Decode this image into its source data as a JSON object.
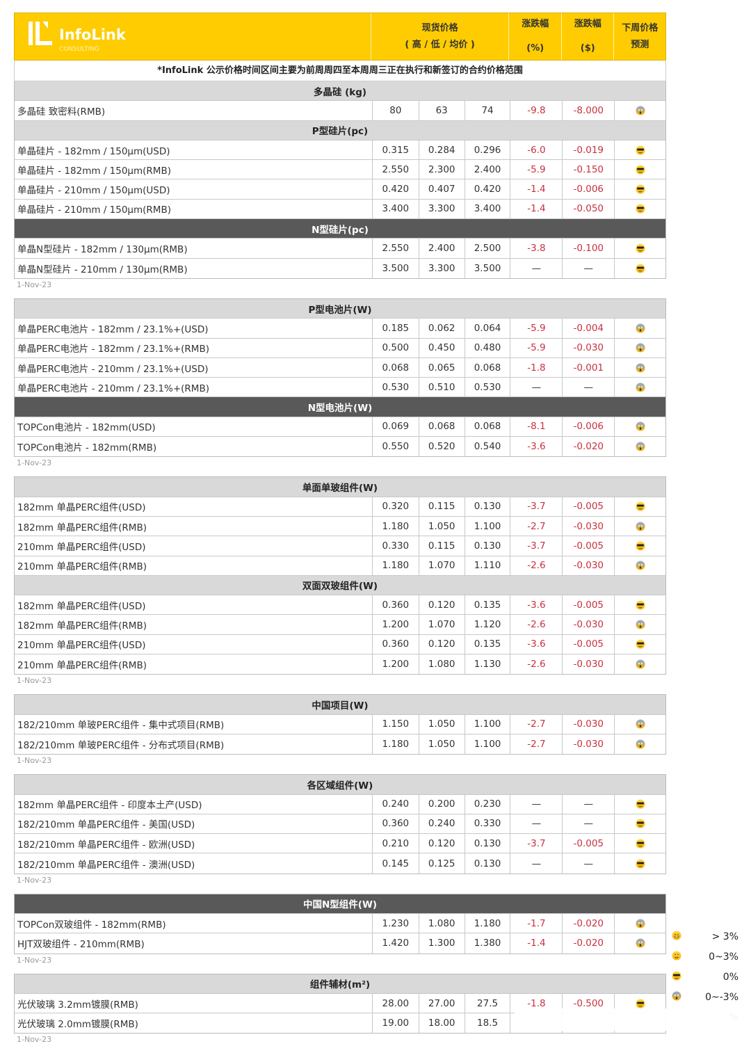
{
  "brand": {
    "name": "InfoLink",
    "sub": "CONSULTING"
  },
  "header": {
    "price_line1": "现货价格",
    "price_line2": "( 高 / 低 / 均价 )",
    "pct_line1": "涨跌幅",
    "pct_line2": "(%)",
    "usd_line1": "涨跌幅",
    "usd_line2": "($)",
    "forecast_line1": "下周价格",
    "forecast_line2": "预测"
  },
  "notice": "*InfoLink 公示价格时间区间主要为前周周四至本周周三正在执行和新签订的合约价格范围",
  "colors": {
    "yellow": "#fecc00",
    "section_gray": "#d9d9d9",
    "section_dark": "#595959",
    "negative_red": "#c8303e"
  },
  "blocks": [
    {
      "date": "1-Nov-23",
      "sections": [
        {
          "title": "多晶硅 (kg)",
          "dark": false,
          "rows": [
            [
              "多晶硅 致密料(RMB)",
              "80",
              "63",
              "74",
              "-9.8",
              "-8.000",
              "scream-face"
            ]
          ]
        },
        {
          "title": "P型硅片(pc)",
          "dark": false,
          "rows": [
            [
              "单晶硅片 - 182mm / 150μm(USD)",
              "0.315",
              "0.284",
              "0.296",
              "-6.0",
              "-0.019",
              "sunglasses-face"
            ],
            [
              "单晶硅片 - 182mm / 150μm(RMB)",
              "2.550",
              "2.300",
              "2.400",
              "-5.9",
              "-0.150",
              "sunglasses-face"
            ],
            [
              "单晶硅片 - 210mm / 150μm(USD)",
              "0.420",
              "0.407",
              "0.420",
              "-1.4",
              "-0.006",
              "sunglasses-face"
            ],
            [
              "单晶硅片 - 210mm / 150μm(RMB)",
              "3.400",
              "3.300",
              "3.400",
              "-1.4",
              "-0.050",
              "sunglasses-face"
            ]
          ]
        },
        {
          "title": "N型硅片(pc)",
          "dark": true,
          "rows": [
            [
              "单晶N型硅片 - 182mm / 130μm(RMB)",
              "2.550",
              "2.400",
              "2.500",
              "-3.8",
              "-0.100",
              "sunglasses-face"
            ],
            [
              "单晶N型硅片 - 210mm / 130μm(RMB)",
              "3.500",
              "3.300",
              "3.500",
              "—",
              "—",
              "sunglasses-face"
            ]
          ]
        }
      ]
    },
    {
      "date": "1-Nov-23",
      "sections": [
        {
          "title": "P型电池片(W)",
          "dark": false,
          "rows": [
            [
              "单晶PERC电池片 - 182mm / 23.1%+(USD)",
              "0.185",
              "0.062",
              "0.064",
              "-5.9",
              "-0.004",
              "scream-face"
            ],
            [
              "单晶PERC电池片 - 182mm / 23.1%+(RMB)",
              "0.500",
              "0.450",
              "0.480",
              "-5.9",
              "-0.030",
              "scream-face"
            ],
            [
              "单晶PERC电池片 - 210mm / 23.1%+(USD)",
              "0.068",
              "0.065",
              "0.068",
              "-1.8",
              "-0.001",
              "scream-face"
            ],
            [
              "单晶PERC电池片 - 210mm / 23.1%+(RMB)",
              "0.530",
              "0.510",
              "0.530",
              "—",
              "—",
              "scream-face"
            ]
          ]
        },
        {
          "title": "N型电池片(W)",
          "dark": true,
          "rows": [
            [
              "TOPCon电池片 - 182mm(USD)",
              "0.069",
              "0.068",
              "0.068",
              "-8.1",
              "-0.006",
              "scream-face"
            ],
            [
              "TOPCon电池片 - 182mm(RMB)",
              "0.550",
              "0.520",
              "0.540",
              "-3.6",
              "-0.020",
              "scream-face"
            ]
          ]
        }
      ]
    },
    {
      "date": "1-Nov-23",
      "sections": [
        {
          "title": "单面单玻组件(W)",
          "dark": false,
          "rows": [
            [
              "182mm 单晶PERC组件(USD)",
              "0.320",
              "0.115",
              "0.130",
              "-3.7",
              "-0.005",
              "sunglasses-face"
            ],
            [
              "182mm 单晶PERC组件(RMB)",
              "1.180",
              "1.050",
              "1.100",
              "-2.7",
              "-0.030",
              "scream-face"
            ],
            [
              "210mm 单晶PERC组件(USD)",
              "0.330",
              "0.115",
              "0.130",
              "-3.7",
              "-0.005",
              "sunglasses-face"
            ],
            [
              "210mm 单晶PERC组件(RMB)",
              "1.180",
              "1.070",
              "1.110",
              "-2.6",
              "-0.030",
              "scream-face"
            ]
          ]
        },
        {
          "title": "双面双玻组件(W)",
          "dark": false,
          "rows": [
            [
              "182mm 单晶PERC组件(USD)",
              "0.360",
              "0.120",
              "0.135",
              "-3.6",
              "-0.005",
              "sunglasses-face"
            ],
            [
              "182mm 单晶PERC组件(RMB)",
              "1.200",
              "1.070",
              "1.120",
              "-2.6",
              "-0.030",
              "scream-face"
            ],
            [
              "210mm 单晶PERC组件(USD)",
              "0.360",
              "0.120",
              "0.135",
              "-3.6",
              "-0.005",
              "sunglasses-face"
            ],
            [
              "210mm 单晶PERC组件(RMB)",
              "1.200",
              "1.080",
              "1.130",
              "-2.6",
              "-0.030",
              "scream-face"
            ]
          ]
        }
      ]
    },
    {
      "date": "1-Nov-23",
      "sections": [
        {
          "title": "中国项目(W)",
          "dark": false,
          "rows": [
            [
              "182/210mm 单玻PERC组件 - 集中式项目(RMB)",
              "1.150",
              "1.050",
              "1.100",
              "-2.7",
              "-0.030",
              "scream-face"
            ],
            [
              "182/210mm 单玻PERC组件 - 分布式项目(RMB)",
              "1.180",
              "1.050",
              "1.100",
              "-2.7",
              "-0.030",
              "scream-face"
            ]
          ]
        }
      ]
    },
    {
      "date": "1-Nov-23",
      "sections": [
        {
          "title": "各区域组件(W)",
          "dark": false,
          "rows": [
            [
              "182mm 单晶PERC组件 - 印度本土产(USD)",
              "0.240",
              "0.200",
              "0.230",
              "—",
              "—",
              "sunglasses-face"
            ],
            [
              "182/210mm 单晶PERC组件 - 美国(USD)",
              "0.360",
              "0.240",
              "0.330",
              "—",
              "—",
              "sunglasses-face"
            ],
            [
              "182/210mm 单晶PERC组件 - 欧洲(USD)",
              "0.210",
              "0.120",
              "0.130",
              "-3.7",
              "-0.005",
              "sunglasses-face"
            ],
            [
              "182/210mm 单晶PERC组件 - 澳洲(USD)",
              "0.145",
              "0.125",
              "0.130",
              "—",
              "—",
              "sunglasses-face"
            ]
          ]
        }
      ]
    },
    {
      "date": "1-Nov-23",
      "sections": [
        {
          "title": "中国N型组件(W)",
          "dark": true,
          "rows": [
            [
              "TOPCon双玻组件 - 182mm(RMB)",
              "1.230",
              "1.080",
              "1.180",
              "-1.7",
              "-0.020",
              "scream-face"
            ],
            [
              "HJT双玻组件 - 210mm(RMB)",
              "1.420",
              "1.300",
              "1.380",
              "-1.4",
              "-0.020",
              "scream-face"
            ]
          ]
        }
      ]
    },
    {
      "date": "1-Nov-23",
      "sections": [
        {
          "title": "组件辅材(m²)",
          "dark": false,
          "rows": [
            [
              "光伏玻璃 3.2mm镀膜(RMB)",
              "28.00",
              "27.00",
              "27.5",
              "-1.8",
              "-0.500",
              "sunglasses-face"
            ],
            [
              "光伏玻璃 2.0mm镀膜(RMB)",
              "19.00",
              "18.00",
              "18.5",
              "",
              "",
              ""
            ]
          ]
        }
      ]
    }
  ],
  "legend": [
    {
      "icon": "grin-face",
      "label": "> 3%"
    },
    {
      "icon": "smile-face",
      "label": "0~3%"
    },
    {
      "icon": "sunglasses-face",
      "label": "0%"
    },
    {
      "icon": "scream-face",
      "label": "0~-3%"
    },
    {
      "icon": "",
      "label": "%"
    }
  ]
}
